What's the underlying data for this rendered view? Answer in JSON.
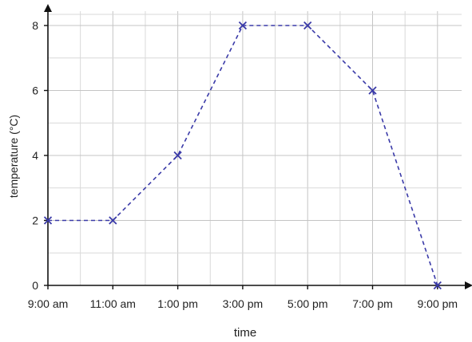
{
  "chart_data": {
    "type": "line",
    "categories": [
      "9:00 am",
      "11:00 am",
      "1:00 pm",
      "3:00 pm",
      "5:00 pm",
      "7:00 pm",
      "9:00 pm"
    ],
    "series": [
      {
        "values": [
          2,
          2,
          4,
          8,
          8,
          6,
          0
        ]
      }
    ],
    "xlabel": "time",
    "ylabel": "temperature (°C)",
    "yticks": [
      "0",
      "2",
      "4",
      "6",
      "8"
    ],
    "ylim": [
      0,
      8.5
    ],
    "grid": true,
    "line_style": "dashed",
    "marker": "x",
    "colors": {
      "series": "#3a3aa8",
      "axis": "#111111",
      "grid": "#d0d0d0"
    }
  }
}
